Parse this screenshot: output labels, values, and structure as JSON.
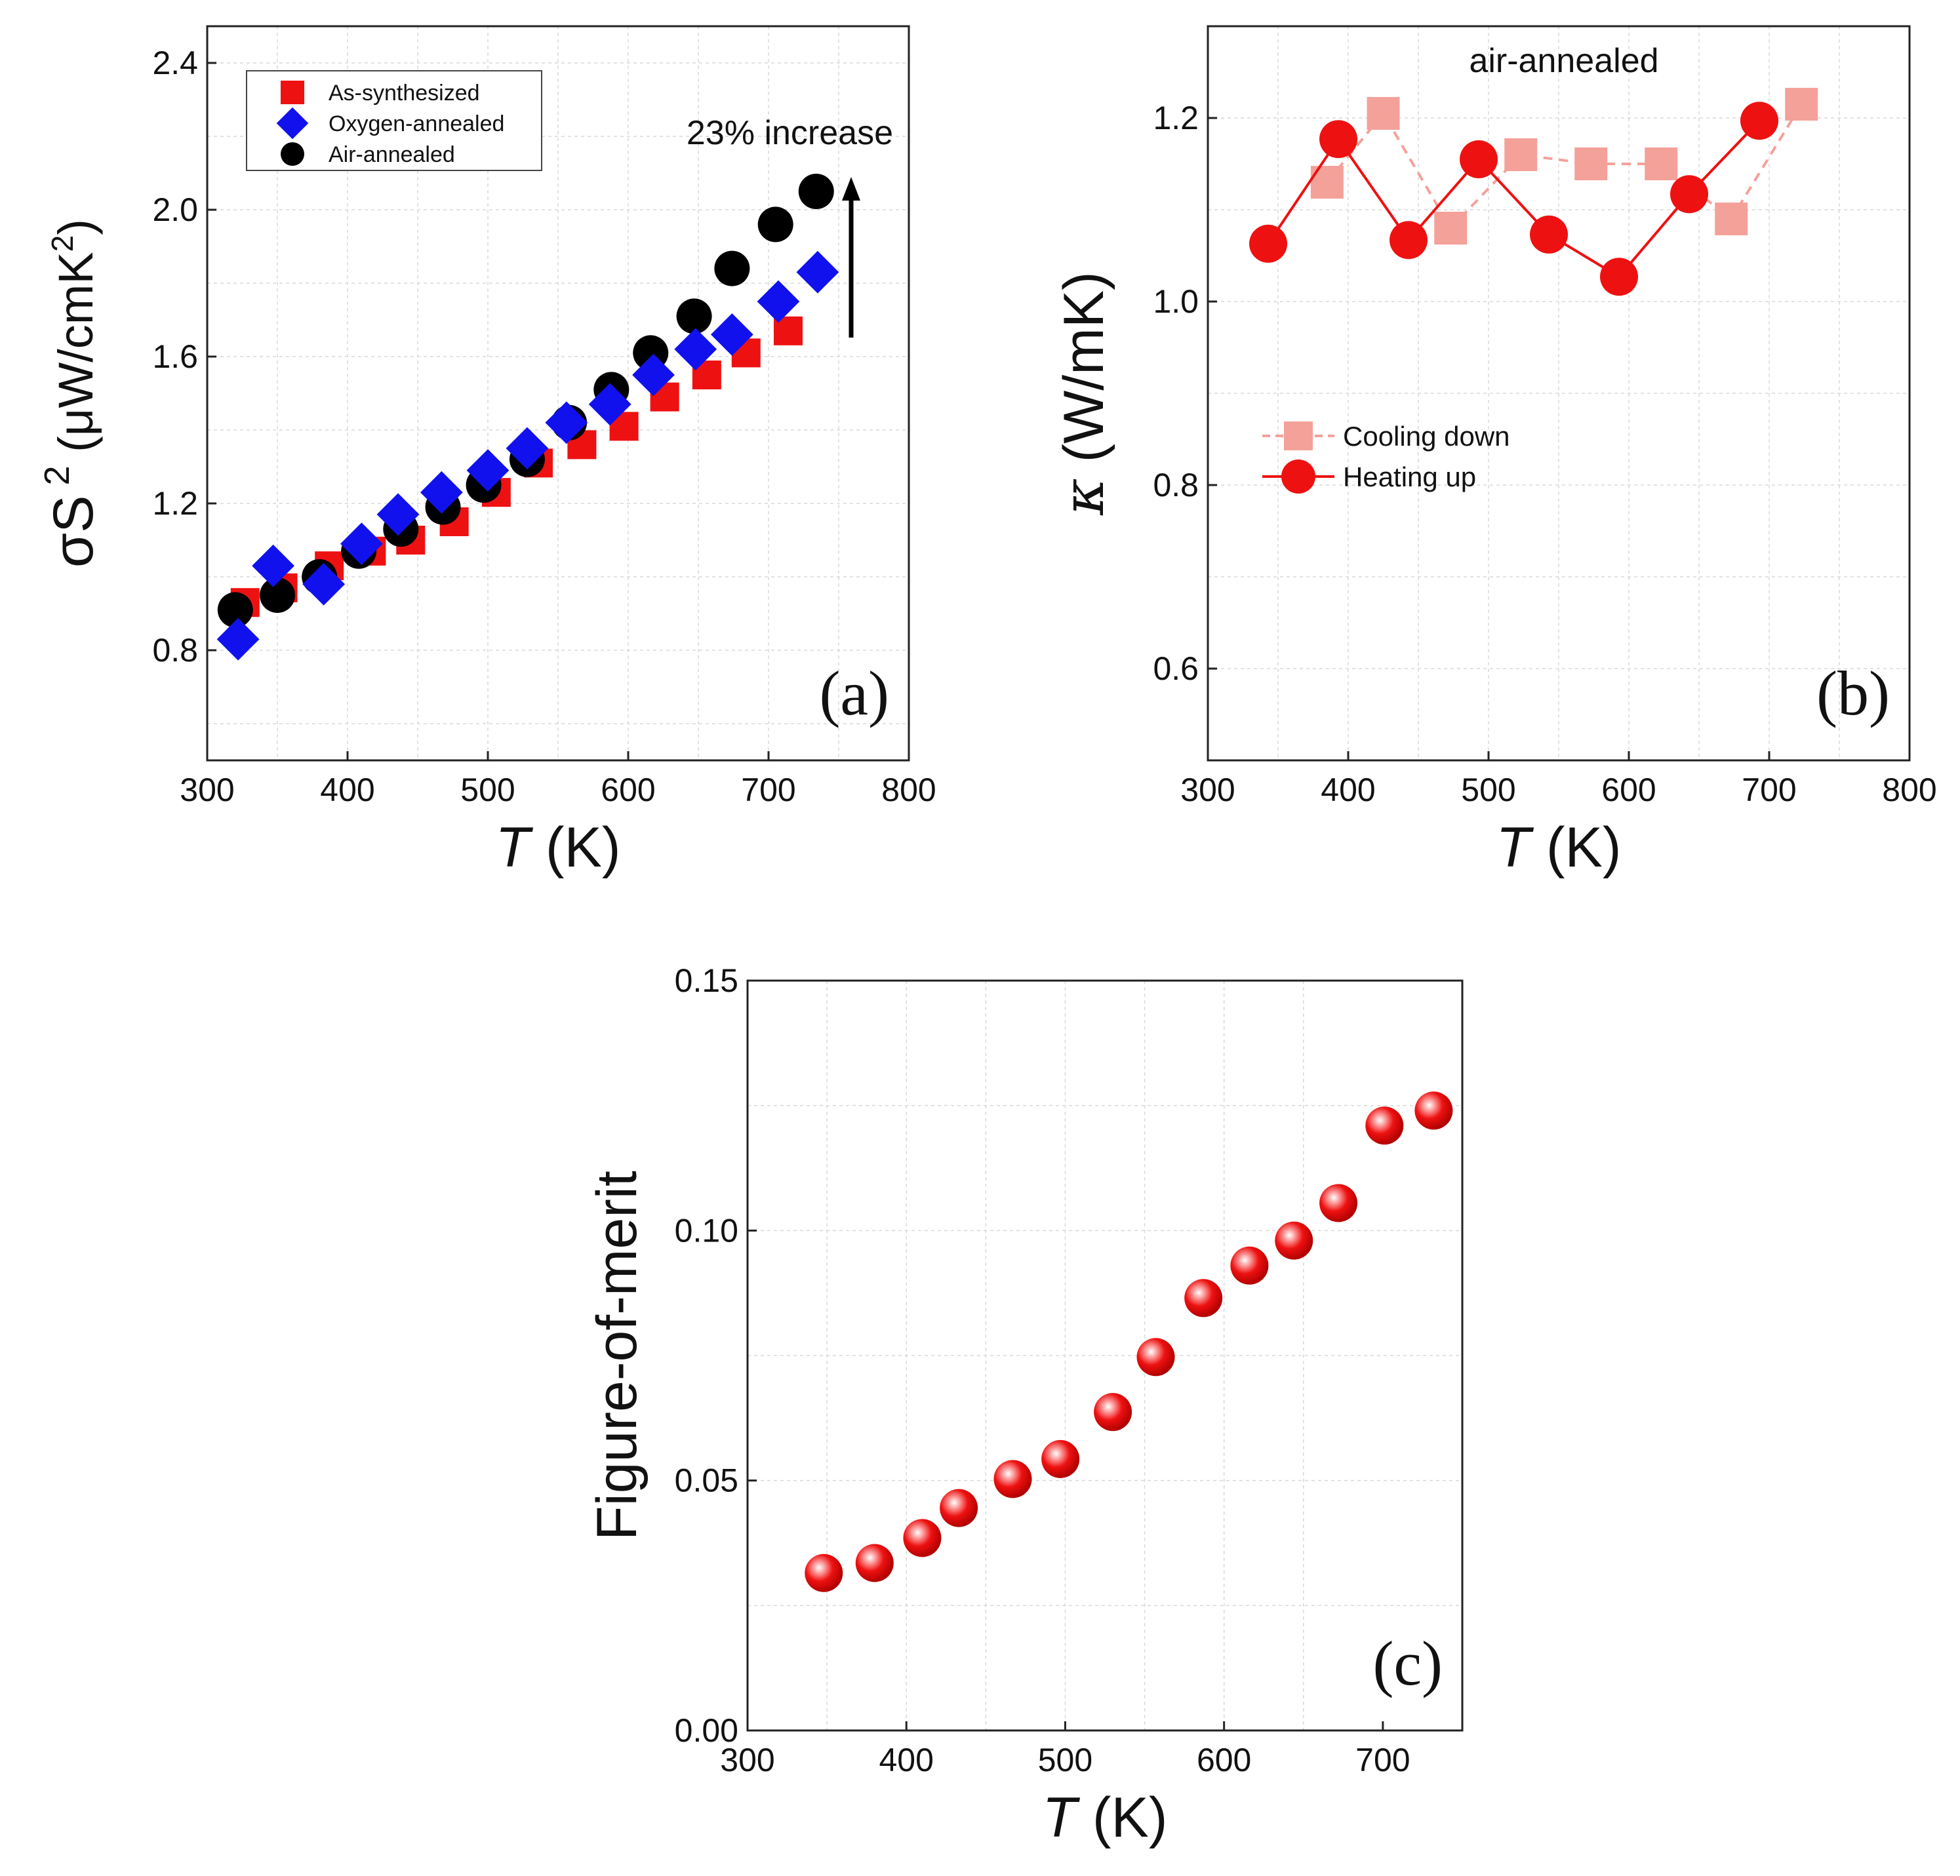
{
  "chart_data": [
    {
      "type": "scatter",
      "panel_label": "(a)",
      "xlabel": "T",
      "xlabel_unit": "(K)",
      "ylabel_prefix": "σS",
      "ylabel_sup": "2",
      "ylabel_unit_open": " (μW/cmK",
      "ylabel_unit_sup": "2",
      "ylabel_unit_close": ")",
      "xlim": [
        300,
        800
      ],
      "ylim": [
        0.5,
        2.5
      ],
      "xticks": [
        "300",
        "400",
        "500",
        "600",
        "700",
        "800"
      ],
      "yticks": [
        "0.8",
        "1.2",
        "1.6",
        "2.0",
        "2.4"
      ],
      "legend_position": "top-left",
      "annotation": "23% increase",
      "series": [
        {
          "name": "As-synthesized",
          "marker": "square",
          "color": "#ee1111",
          "x": [
            327,
            354,
            387,
            417,
            445,
            476,
            506,
            536,
            567,
            597,
            626,
            656,
            684,
            714
          ],
          "y": [
            0.93,
            0.97,
            1.03,
            1.07,
            1.1,
            1.15,
            1.23,
            1.31,
            1.36,
            1.41,
            1.49,
            1.55,
            1.61,
            1.67
          ]
        },
        {
          "name": "Oxygen-annealed",
          "marker": "diamond",
          "color": "#1111ee",
          "x": [
            322,
            347,
            383,
            410,
            436,
            467,
            500,
            528,
            556,
            587,
            618,
            648,
            674,
            707,
            735
          ],
          "y": [
            0.83,
            1.03,
            0.98,
            1.09,
            1.17,
            1.23,
            1.29,
            1.35,
            1.42,
            1.47,
            1.55,
            1.62,
            1.66,
            1.75,
            1.83
          ]
        },
        {
          "name": "Air-annealed",
          "marker": "circle",
          "color": "#000000",
          "x": [
            320,
            350,
            380,
            408,
            438,
            468,
            497,
            528,
            558,
            588,
            616,
            647,
            674,
            705,
            734
          ],
          "y": [
            0.91,
            0.95,
            1.0,
            1.07,
            1.13,
            1.19,
            1.25,
            1.32,
            1.42,
            1.51,
            1.61,
            1.71,
            1.84,
            1.96,
            2.05
          ]
        }
      ]
    },
    {
      "type": "line",
      "panel_label": "(b)",
      "title": "air-annealed",
      "xlabel": "T",
      "xlabel_unit": "(K)",
      "ylabel_symbol": "κ",
      "ylabel_unit": " (W/mK)",
      "xlim": [
        300,
        800
      ],
      "ylim": [
        0.5,
        1.3
      ],
      "xticks": [
        "300",
        "400",
        "500",
        "600",
        "700",
        "800"
      ],
      "yticks": [
        "0.6",
        "0.8",
        "1.0",
        "1.2"
      ],
      "legend_position": "center-left",
      "series": [
        {
          "name": "Cooling down",
          "marker": "square",
          "color": "#f4a19a",
          "x": [
            385,
            425,
            473,
            523,
            573,
            623,
            673,
            723
          ],
          "y": [
            1.13,
            1.205,
            1.08,
            1.16,
            1.15,
            1.15,
            1.09,
            1.215
          ]
        },
        {
          "name": "Heating up",
          "marker": "circle",
          "color": "#ee1111",
          "x": [
            343,
            393,
            443,
            493,
            543,
            593,
            643,
            693
          ],
          "y": [
            1.063,
            1.177,
            1.067,
            1.155,
            1.073,
            1.027,
            1.117,
            1.197
          ]
        }
      ]
    },
    {
      "type": "scatter",
      "panel_label": "(c)",
      "xlabel": "T",
      "xlabel_unit": "(K)",
      "ylabel": "Figure-of-merit",
      "xlim": [
        300,
        750
      ],
      "ylim": [
        0.0,
        0.15
      ],
      "xticks": [
        "300",
        "400",
        "500",
        "600",
        "700"
      ],
      "yticks": [
        "0.00",
        "0.05",
        "0.10",
        "0.15"
      ],
      "series": [
        {
          "marker": "sphere",
          "color": "#ee1111",
          "x": [
            348,
            380,
            410,
            433,
            467,
            497,
            530,
            557,
            587,
            616,
            644,
            672,
            701,
            732
          ],
          "y": [
            0.0315,
            0.0335,
            0.0385,
            0.0445,
            0.0503,
            0.0543,
            0.0637,
            0.0747,
            0.0865,
            0.093,
            0.098,
            0.1055,
            0.121,
            0.124
          ]
        }
      ]
    }
  ]
}
